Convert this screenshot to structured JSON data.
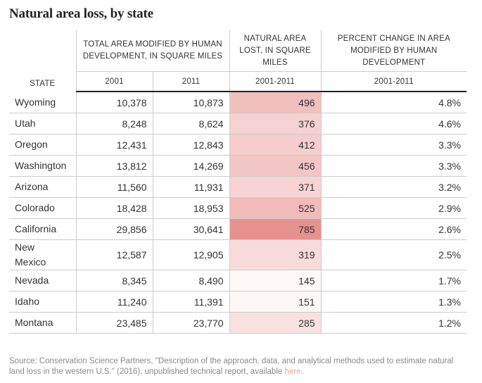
{
  "title": "Natural area loss, by state",
  "headers": {
    "state": "STATE",
    "total_area": "TOTAL AREA MODIFIED BY HUMAN DEVELOPMENT, IN SQUARE MILES",
    "natural_lost": "NATURAL AREA LOST, IN SQUARE MILES",
    "percent_change": "PERCENT CHANGE IN AREA MODIFIED BY HUMAN DEVELOPMENT",
    "col_2001": "2001",
    "col_2011": "2011",
    "col_lost_period": "2001-2011",
    "col_pct_period": "2001-2011"
  },
  "rows": [
    {
      "state": "Wyoming",
      "a2001": "10,378",
      "a2011": "10,873",
      "lost": "496",
      "lost_value": 496,
      "pct": "4.8%"
    },
    {
      "state": "Utah",
      "a2001": "8,248",
      "a2011": "8,624",
      "lost": "376",
      "lost_value": 376,
      "pct": "4.6%"
    },
    {
      "state": "Oregon",
      "a2001": "12,431",
      "a2011": "12,843",
      "lost": "412",
      "lost_value": 412,
      "pct": "3.3%"
    },
    {
      "state": "Washington",
      "a2001": "13,812",
      "a2011": "14,269",
      "lost": "456",
      "lost_value": 456,
      "pct": "3.3%"
    },
    {
      "state": "Arizona",
      "a2001": "11,560",
      "a2011": "11,931",
      "lost": "371",
      "lost_value": 371,
      "pct": "3.2%"
    },
    {
      "state": "Colorado",
      "a2001": "18,428",
      "a2011": "18,953",
      "lost": "525",
      "lost_value": 525,
      "pct": "2.9%"
    },
    {
      "state": "California",
      "a2001": "29,856",
      "a2011": "30,641",
      "lost": "785",
      "lost_value": 785,
      "pct": "2.6%"
    },
    {
      "state": "New Mexico",
      "a2001": "12,587",
      "a2011": "12,905",
      "lost": "319",
      "lost_value": 319,
      "pct": "2.5%"
    },
    {
      "state": "Nevada",
      "a2001": "8,345",
      "a2011": "8,490",
      "lost": "145",
      "lost_value": 145,
      "pct": "1.7%"
    },
    {
      "state": "Idaho",
      "a2001": "11,240",
      "a2011": "11,391",
      "lost": "151",
      "lost_value": 151,
      "pct": "1.3%"
    },
    {
      "state": "Montana",
      "a2001": "23,485",
      "a2011": "23,770",
      "lost": "285",
      "lost_value": 285,
      "pct": "1.2%"
    }
  ],
  "heat_color": "#d9534f",
  "source": {
    "text": "Source: Conservation Science Partners, \"Description of the approach, data, and analytical methods used to estimate natural land loss in the western U.S.\" (2016), unpublished technical report, available ",
    "link_text": "here",
    "end": "."
  },
  "colors": {
    "link": "#e8a98a",
    "rule": "#222222",
    "gridline": "#cccccc"
  }
}
